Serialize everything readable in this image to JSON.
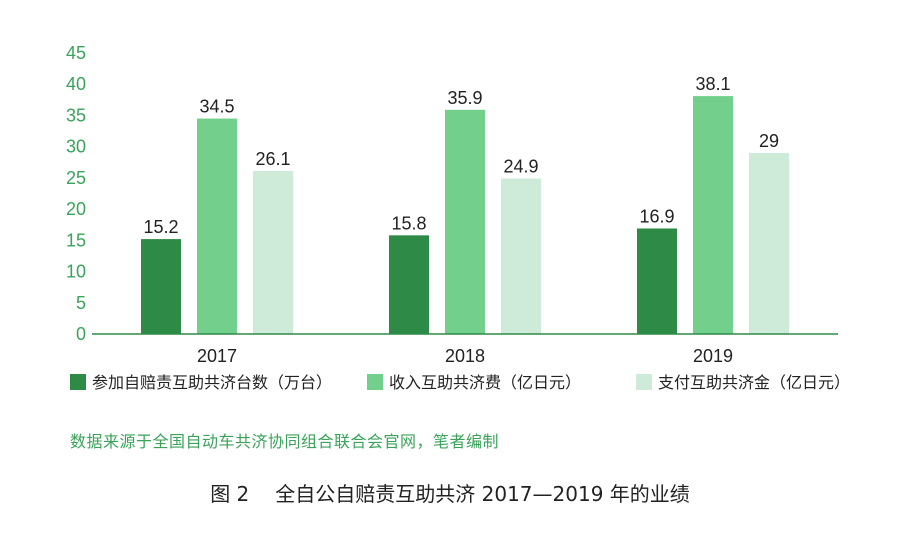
{
  "chart_data": {
    "type": "bar",
    "categories": [
      "2017",
      "2018",
      "2019"
    ],
    "series": [
      {
        "name": "参加自赔责互助共济台数（万台）",
        "values": [
          15.2,
          15.8,
          16.9
        ],
        "color": "#2e8b47"
      },
      {
        "name": "收入互助共济费（亿日元）",
        "values": [
          34.5,
          35.9,
          38.1
        ],
        "color": "#72cf8c"
      },
      {
        "name": "支付互助共济金（亿日元）",
        "values": [
          26.1,
          24.9,
          29
        ],
        "color": "#cdebd8"
      }
    ],
    "y_ticks": [
      0,
      5,
      10,
      15,
      20,
      25,
      30,
      35,
      40,
      45
    ],
    "ylim": [
      0,
      45
    ],
    "grid": false,
    "legend_position": "bottom",
    "axis_color": "#2e8b47",
    "tick_color": "#3aa35a",
    "label_color": "#222222"
  },
  "source_note": "数据来源于全国自动车共济协同组合联合会官网，笔者编制",
  "caption": {
    "number": "图 2",
    "title": "全自公自赔责互助共济 2017—2019 年的业绩"
  }
}
